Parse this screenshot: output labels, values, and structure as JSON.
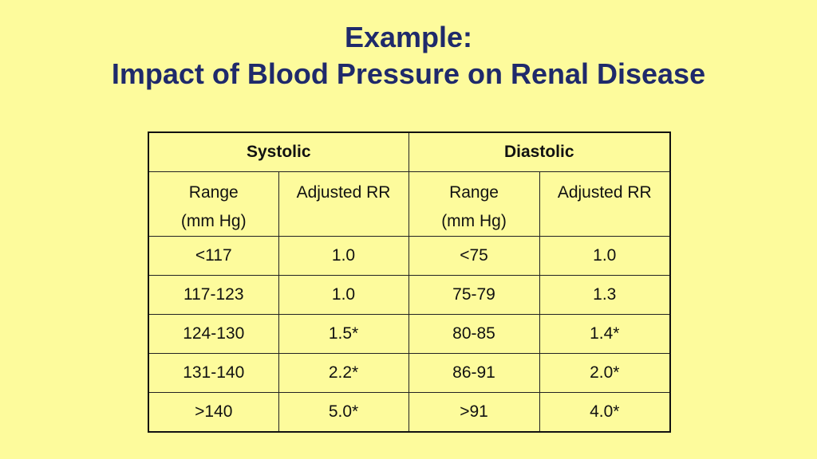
{
  "slide": {
    "title_line1": "Example:",
    "title_line2": "Impact of Blood Pressure on Renal Disease"
  },
  "table": {
    "groups": [
      "Systolic",
      "Diastolic"
    ],
    "subheaders": {
      "range_line1": "Range",
      "range_line2": "(mm Hg)",
      "rr": "Adjusted RR"
    },
    "rows": [
      {
        "sys_range": "<117",
        "sys_rr": "1.0",
        "dia_range": "<75",
        "dia_rr": "1.0"
      },
      {
        "sys_range": "117-123",
        "sys_rr": "1.0",
        "dia_range": "75-79",
        "dia_rr": "1.3"
      },
      {
        "sys_range": "124-130",
        "sys_rr": "1.5*",
        "dia_range": "80-85",
        "dia_rr": "1.4*"
      },
      {
        "sys_range": "131-140",
        "sys_rr": "2.2*",
        "dia_range": "86-91",
        "dia_rr": "2.0*"
      },
      {
        "sys_range": ">140",
        "sys_rr": "5.0*",
        "dia_range": ">91",
        "dia_rr": "4.0*"
      }
    ]
  },
  "colors": {
    "background": "#fdfb9c",
    "title": "#1f2a6b",
    "text": "#111111"
  }
}
